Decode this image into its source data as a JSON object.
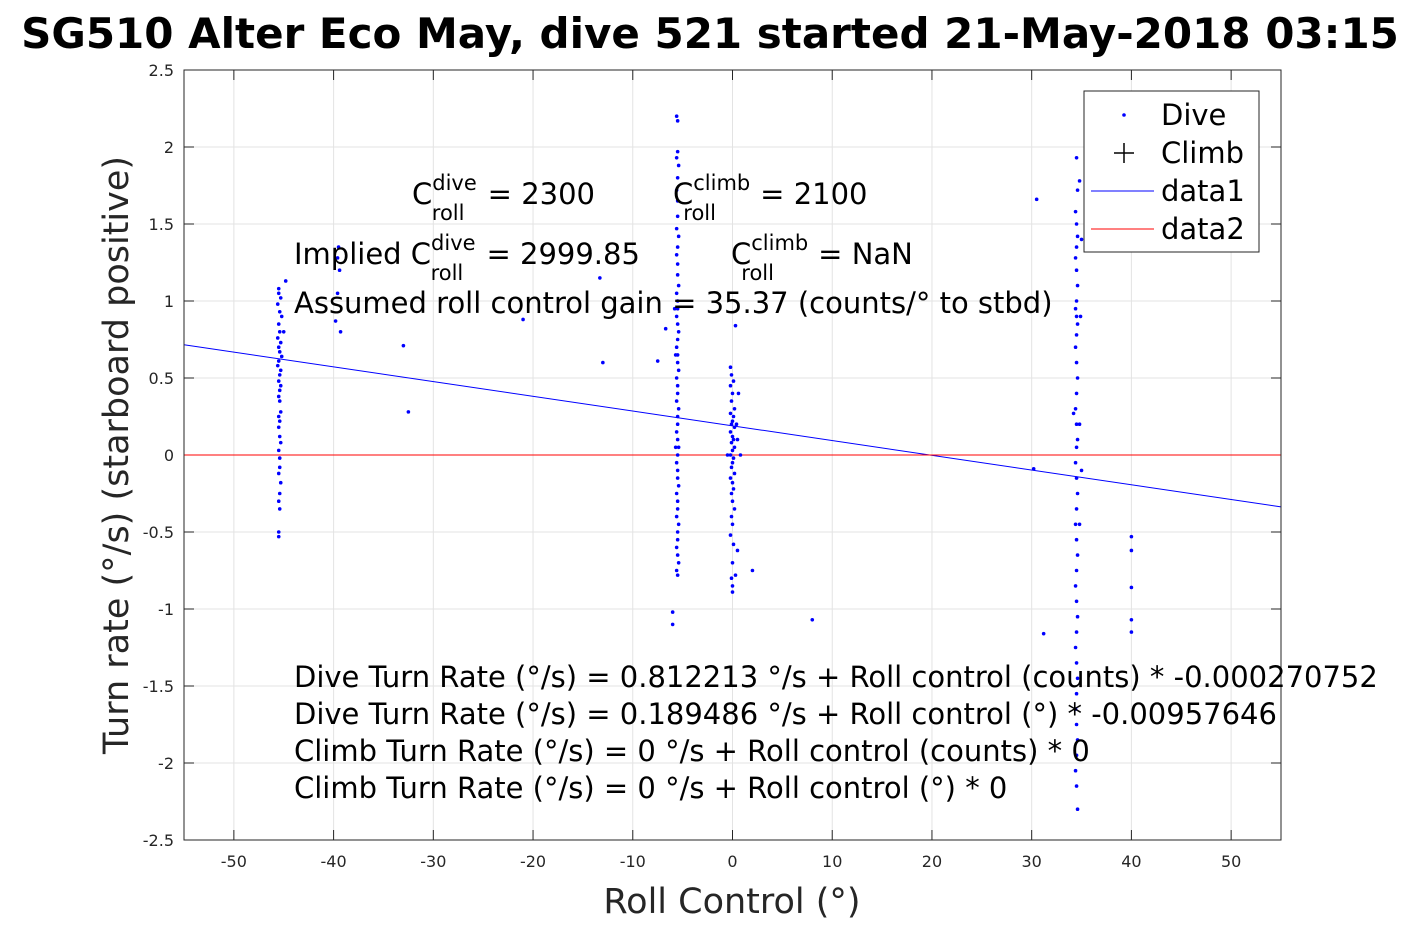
{
  "chart_data": {
    "type": "scatter",
    "title": "SG510 Alter Eco May, dive 521 started 21-May-2018 03:15",
    "xlabel": "Roll Control (°)",
    "ylabel": "Turn rate (°/s) (starboard positive)",
    "xlim": [
      -55,
      55
    ],
    "ylim": [
      -2.5,
      2.5
    ],
    "xticks": [
      -50,
      -40,
      -30,
      -20,
      -10,
      0,
      10,
      20,
      30,
      40,
      50
    ],
    "yticks": [
      -2.5,
      -2,
      -1.5,
      -1,
      -0.5,
      0,
      0.5,
      1,
      1.5,
      2,
      2.5
    ],
    "grid": true,
    "legend_position": "top-right",
    "legend": [
      "Dive",
      "Climb",
      "data1",
      "data2"
    ],
    "colors": {
      "dive": "#0000ff",
      "climb": "#000000",
      "data1": "#0000ff",
      "data2": "#ff0000"
    },
    "series": [
      {
        "name": "Dive",
        "marker": "point",
        "points": [
          [
            -45.5,
            1.08
          ],
          [
            -45.5,
            1.05
          ],
          [
            -45.3,
            1.02
          ],
          [
            -45.6,
            0.98
          ],
          [
            -45.4,
            0.93
          ],
          [
            -45.2,
            0.9
          ],
          [
            -45.5,
            0.85
          ],
          [
            -45.4,
            0.8
          ],
          [
            -45.6,
            0.76
          ],
          [
            -45.3,
            0.73
          ],
          [
            -45.5,
            0.7
          ],
          [
            -45.4,
            0.67
          ],
          [
            -45.2,
            0.64
          ],
          [
            -45.5,
            0.61
          ],
          [
            -45.6,
            0.58
          ],
          [
            -45.3,
            0.55
          ],
          [
            -45.4,
            0.52
          ],
          [
            -45.5,
            0.48
          ],
          [
            -45.3,
            0.45
          ],
          [
            -45.4,
            0.42
          ],
          [
            -45.5,
            0.38
          ],
          [
            -45.4,
            0.35
          ],
          [
            -45.3,
            0.28
          ],
          [
            -45.5,
            0.25
          ],
          [
            -45.4,
            0.22
          ],
          [
            -45.5,
            0.18
          ],
          [
            -45.4,
            0.12
          ],
          [
            -45.3,
            0.08
          ],
          [
            -45.5,
            0.03
          ],
          [
            -45.4,
            -0.02
          ],
          [
            -45.4,
            -0.08
          ],
          [
            -45.5,
            -0.12
          ],
          [
            -45.3,
            -0.18
          ],
          [
            -45.4,
            -0.25
          ],
          [
            -45.5,
            -0.3
          ],
          [
            -45.4,
            -0.35
          ],
          [
            -45.5,
            -0.5
          ],
          [
            -45.5,
            -0.53
          ],
          [
            -44.8,
            1.13
          ],
          [
            -45.0,
            0.8
          ],
          [
            -39.5,
            1.35
          ],
          [
            -39.6,
            1.28
          ],
          [
            -39.4,
            1.2
          ],
          [
            -39.6,
            1.05
          ],
          [
            -39.8,
            0.87
          ],
          [
            -39.3,
            0.8
          ],
          [
            -33.0,
            0.71
          ],
          [
            -32.5,
            0.28
          ],
          [
            -21.0,
            0.88
          ],
          [
            -13.3,
            1.15
          ],
          [
            -13.0,
            0.6
          ],
          [
            -7.5,
            0.61
          ],
          [
            -6.7,
            0.82
          ],
          [
            -5.6,
            2.2
          ],
          [
            -5.5,
            2.17
          ],
          [
            -5.5,
            1.97
          ],
          [
            -5.6,
            1.93
          ],
          [
            -5.4,
            1.88
          ],
          [
            -5.5,
            1.8
          ],
          [
            -5.6,
            1.72
          ],
          [
            -5.5,
            1.65
          ],
          [
            -5.5,
            1.55
          ],
          [
            -5.6,
            1.47
          ],
          [
            -5.4,
            1.42
          ],
          [
            -5.5,
            1.35
          ],
          [
            -5.6,
            1.3
          ],
          [
            -5.5,
            1.24
          ],
          [
            -5.5,
            1.17
          ],
          [
            -5.4,
            1.1
          ],
          [
            -5.6,
            1.05
          ],
          [
            -5.5,
            1.0
          ],
          [
            -5.5,
            0.95
          ],
          [
            -5.6,
            0.9
          ],
          [
            -5.5,
            0.85
          ],
          [
            -5.4,
            0.8
          ],
          [
            -5.5,
            0.75
          ],
          [
            -5.6,
            0.7
          ],
          [
            -5.5,
            0.65
          ],
          [
            -5.5,
            0.6
          ],
          [
            -5.4,
            0.55
          ],
          [
            -5.6,
            0.5
          ],
          [
            -5.5,
            0.45
          ],
          [
            -5.5,
            0.4
          ],
          [
            -5.6,
            0.35
          ],
          [
            -5.4,
            0.3
          ],
          [
            -5.5,
            0.25
          ],
          [
            -5.5,
            0.2
          ],
          [
            -5.6,
            0.15
          ],
          [
            -5.5,
            0.1
          ],
          [
            -5.4,
            0.05
          ],
          [
            -5.5,
            0.0
          ],
          [
            -5.6,
            -0.05
          ],
          [
            -5.5,
            -0.1
          ],
          [
            -5.5,
            -0.15
          ],
          [
            -5.4,
            -0.2
          ],
          [
            -5.6,
            -0.25
          ],
          [
            -5.5,
            -0.3
          ],
          [
            -5.5,
            -0.35
          ],
          [
            -5.6,
            -0.4
          ],
          [
            -5.4,
            -0.45
          ],
          [
            -5.5,
            -0.5
          ],
          [
            -5.5,
            -0.55
          ],
          [
            -5.6,
            -0.6
          ],
          [
            -5.5,
            -0.65
          ],
          [
            -5.4,
            -0.7
          ],
          [
            -5.6,
            -0.75
          ],
          [
            -5.5,
            -0.78
          ],
          [
            -6.0,
            -1.02
          ],
          [
            -6.0,
            -1.1
          ],
          [
            -5.8,
            0.95
          ],
          [
            -5.7,
            0.65
          ],
          [
            -5.7,
            0.05
          ],
          [
            -0.2,
            0.57
          ],
          [
            -0.1,
            0.52
          ],
          [
            0.1,
            0.48
          ],
          [
            -0.2,
            0.45
          ],
          [
            0.0,
            0.4
          ],
          [
            -0.1,
            0.35
          ],
          [
            0.2,
            0.3
          ],
          [
            -0.2,
            0.27
          ],
          [
            0.1,
            0.25
          ],
          [
            0.0,
            0.22
          ],
          [
            -0.1,
            0.2
          ],
          [
            0.2,
            0.18
          ],
          [
            -0.2,
            0.15
          ],
          [
            0.0,
            0.12
          ],
          [
            0.1,
            0.1
          ],
          [
            -0.1,
            0.08
          ],
          [
            0.2,
            0.05
          ],
          [
            0.0,
            0.03
          ],
          [
            -0.2,
            0.0
          ],
          [
            0.1,
            -0.02
          ],
          [
            0.0,
            -0.05
          ],
          [
            -0.1,
            -0.08
          ],
          [
            0.2,
            -0.12
          ],
          [
            -0.2,
            -0.15
          ],
          [
            0.0,
            -0.18
          ],
          [
            0.1,
            -0.22
          ],
          [
            -0.1,
            -0.25
          ],
          [
            0.0,
            -0.3
          ],
          [
            0.2,
            -0.35
          ],
          [
            -0.1,
            -0.4
          ],
          [
            0.0,
            -0.45
          ],
          [
            -0.2,
            -0.52
          ],
          [
            0.1,
            -0.58
          ],
          [
            0.0,
            -0.7
          ],
          [
            -0.1,
            -0.8
          ],
          [
            0.0,
            -0.85
          ],
          [
            0.0,
            -0.89
          ],
          [
            0.5,
            -0.62
          ],
          [
            0.3,
            -0.78
          ],
          [
            0.6,
            0.4
          ],
          [
            0.4,
            0.2
          ],
          [
            0.5,
            0.1
          ],
          [
            0.8,
            0.0
          ],
          [
            -0.5,
            0.0
          ],
          [
            0.3,
            0.84
          ],
          [
            2.0,
            -0.75
          ],
          [
            8.0,
            -1.07
          ],
          [
            30.5,
            1.66
          ],
          [
            30.2,
            -0.09
          ],
          [
            31.2,
            -1.16
          ],
          [
            34.2,
            0.27
          ],
          [
            34.5,
            1.93
          ],
          [
            34.6,
            1.72
          ],
          [
            34.4,
            1.58
          ],
          [
            34.5,
            1.5
          ],
          [
            34.6,
            1.42
          ],
          [
            34.5,
            1.35
          ],
          [
            34.4,
            1.28
          ],
          [
            34.5,
            1.2
          ],
          [
            34.6,
            1.1
          ],
          [
            34.5,
            1.0
          ],
          [
            34.4,
            0.95
          ],
          [
            34.5,
            0.9
          ],
          [
            34.6,
            0.85
          ],
          [
            34.5,
            0.78
          ],
          [
            34.4,
            0.7
          ],
          [
            34.5,
            0.6
          ],
          [
            34.6,
            0.5
          ],
          [
            34.5,
            0.4
          ],
          [
            34.4,
            0.3
          ],
          [
            34.5,
            0.2
          ],
          [
            34.6,
            0.1
          ],
          [
            34.5,
            0.05
          ],
          [
            34.4,
            -0.05
          ],
          [
            34.5,
            -0.15
          ],
          [
            34.6,
            -0.25
          ],
          [
            34.5,
            -0.35
          ],
          [
            34.4,
            -0.45
          ],
          [
            34.5,
            -0.55
          ],
          [
            34.6,
            -0.65
          ],
          [
            34.5,
            -0.75
          ],
          [
            34.4,
            -0.85
          ],
          [
            34.5,
            -0.95
          ],
          [
            34.6,
            -1.05
          ],
          [
            34.5,
            -1.15
          ],
          [
            34.4,
            -1.25
          ],
          [
            34.5,
            -1.35
          ],
          [
            34.6,
            -1.45
          ],
          [
            34.5,
            -1.55
          ],
          [
            34.4,
            -1.65
          ],
          [
            34.5,
            -1.75
          ],
          [
            34.6,
            -1.85
          ],
          [
            34.5,
            -1.95
          ],
          [
            34.4,
            -2.05
          ],
          [
            34.5,
            -2.15
          ],
          [
            34.6,
            -2.3
          ],
          [
            34.8,
            1.78
          ],
          [
            35.0,
            1.4
          ],
          [
            34.9,
            0.9
          ],
          [
            34.8,
            0.2
          ],
          [
            35.0,
            -0.1
          ],
          [
            34.8,
            -0.45
          ],
          [
            40.0,
            -0.53
          ],
          [
            40.0,
            -0.62
          ],
          [
            40.0,
            -0.86
          ],
          [
            40.0,
            -1.07
          ],
          [
            40.0,
            -1.15
          ]
        ]
      },
      {
        "name": "Climb",
        "marker": "plus",
        "points": []
      },
      {
        "name": "data1",
        "line": [
          [
            -55,
            0.716
          ],
          [
            55,
            -0.337
          ]
        ]
      },
      {
        "name": "data2",
        "line": [
          [
            -55,
            0
          ],
          [
            55,
            0
          ]
        ]
      }
    ],
    "annotations": {
      "c_dive": {
        "base": "C",
        "sup": "dive",
        "sub": "roll",
        "rest": " = 2300"
      },
      "c_climb": {
        "base": "C",
        "sup": "climb",
        "sub": "roll",
        "rest": " = 2100"
      },
      "implied_prefix": "Implied C",
      "implied_dive_sup": "dive",
      "implied_dive_sub": "roll",
      "implied_dive_rest": " = 2999.85",
      "implied_climb_base": "C",
      "implied_climb_sup": "climb",
      "implied_climb_sub": "roll",
      "implied_climb_rest": " = NaN",
      "gain": "Assumed roll control gain = 35.37 (counts/° to stbd)",
      "fit_lines": [
        "Dive Turn Rate (°/s) = 0.812213 °/s + Roll control (counts) * -0.000270752",
        "Dive Turn Rate (°/s) = 0.189486 °/s + Roll control (°) * -0.00957646",
        "Climb Turn Rate (°/s) = 0 °/s + Roll control (counts) * 0",
        "Climb Turn Rate (°/s) = 0 °/s + Roll control (°) * 0"
      ]
    }
  }
}
